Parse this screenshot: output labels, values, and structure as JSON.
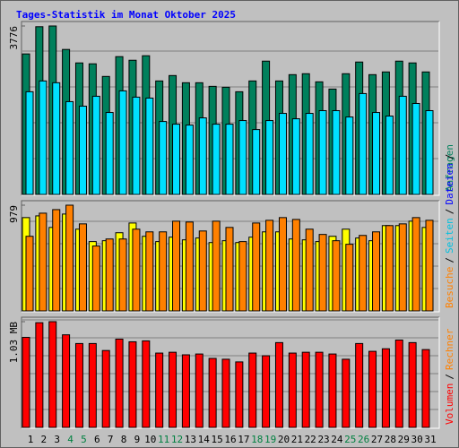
{
  "title": "Tages-Statistik im Monat Oktober 2025",
  "chart_data": [
    {
      "type": "bar",
      "ylim": [
        0,
        3776
      ],
      "yticks": [
        3776
      ],
      "series": [
        {
          "name": "Anfragen",
          "color": "#00805c",
          "values": [
            3150,
            3760,
            3776,
            3250,
            2948,
            2928,
            2645,
            3089,
            3008,
            3109,
            2544,
            2665,
            2504,
            2504,
            2423,
            2403,
            2302,
            2544,
            2988,
            2544,
            2685,
            2706,
            2524,
            2362,
            2706,
            2968,
            2685,
            2746,
            2988,
            2948,
            2746
          ]
        },
        {
          "name": "Seiten",
          "color": "#00e0ff",
          "values": [
            2302,
            2544,
            2504,
            2080,
            1979,
            2201,
            1837,
            2322,
            2181,
            2160,
            1635,
            1575,
            1555,
            1716,
            1575,
            1575,
            1656,
            1454,
            1656,
            1817,
            1696,
            1817,
            1878,
            1878,
            1736,
            2261,
            1837,
            1757,
            2201,
            2039,
            1878
          ]
        }
      ],
      "side_label": [
        {
          "text": "Anfragen",
          "color": "#00805c"
        }
      ]
    },
    {
      "type": "bar",
      "ylim": [
        0,
        979
      ],
      "yticks": [
        979
      ],
      "series": [
        {
          "name": "Besuche",
          "color": "#ffff00",
          "values": [
            864,
            880,
            773,
            897,
            757,
            642,
            650,
            724,
            814,
            691,
            642,
            683,
            658,
            675,
            633,
            650,
            633,
            683,
            732,
            732,
            666,
            658,
            642,
            691,
            757,
            675,
            650,
            790,
            790,
            831,
            773
          ]
        },
        {
          "name": "Rechner",
          "color": "#ff8000",
          "values": [
            691,
            905,
            938,
            979,
            806,
            601,
            666,
            666,
            757,
            732,
            732,
            831,
            823,
            740,
            831,
            773,
            642,
            814,
            839,
            864,
            847,
            757,
            708,
            650,
            617,
            699,
            732,
            790,
            806,
            864,
            839
          ]
        }
      ],
      "side_label": [
        {
          "text": "Besuche",
          "color": "#ff8000"
        },
        {
          "text": "/",
          "color": "#000000"
        },
        {
          "text": "Seiten",
          "color": "#00c0e0"
        },
        {
          "text": "/",
          "color": "#000000"
        },
        {
          "text": "Dateien",
          "color": "#0000ff"
        },
        {
          "text": "/",
          "color": "#000000"
        }
      ]
    },
    {
      "type": "bar",
      "ylim": [
        0,
        1.03
      ],
      "yticks": [
        {
          "value": 1.03,
          "label": "1.03 MB"
        }
      ],
      "categories": [
        "1",
        "2",
        "3",
        "4",
        "5",
        "6",
        "7",
        "8",
        "9",
        "10",
        "11",
        "12",
        "13",
        "14",
        "15",
        "16",
        "17",
        "18",
        "19",
        "20",
        "21",
        "22",
        "23",
        "24",
        "25",
        "26",
        "27",
        "28",
        "29",
        "30",
        "31"
      ],
      "weekend_categories": [
        "4",
        "5",
        "11",
        "12",
        "18",
        "19",
        "25",
        "26"
      ],
      "weekend_color": "#008040",
      "series": [
        {
          "name": "Volumen",
          "color": "#ff0000",
          "values": [
            0.877,
            1.02,
            1.03,
            0.902,
            0.817,
            0.817,
            0.749,
            0.86,
            0.834,
            0.843,
            0.724,
            0.732,
            0.707,
            0.715,
            0.672,
            0.664,
            0.638,
            0.724,
            0.698,
            0.826,
            0.724,
            0.732,
            0.732,
            0.715,
            0.664,
            0.817,
            0.741,
            0.766,
            0.851,
            0.826,
            0.758
          ]
        }
      ],
      "side_label": [
        {
          "text": "Volumen",
          "color": "#ff0000"
        },
        {
          "text": "/",
          "color": "#000000"
        },
        {
          "text": "Rechner",
          "color": "#ff8000"
        }
      ]
    }
  ]
}
